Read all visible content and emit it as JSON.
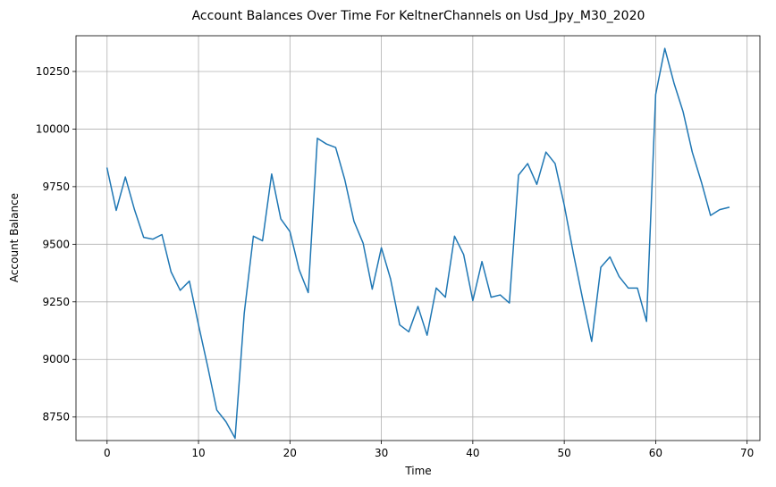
{
  "chart_data": {
    "type": "line",
    "title": "Account Balances Over Time For KeltnerChannels on Usd_Jpy_M30_2020",
    "xlabel": "Time",
    "ylabel": "Account Balance",
    "xlim": [
      -3.4,
      71.4
    ],
    "ylim": [
      8648,
      10405
    ],
    "x_ticks": [
      0,
      10,
      20,
      30,
      40,
      50,
      60,
      70
    ],
    "x_tick_labels": [
      "0",
      "10",
      "20",
      "30",
      "40",
      "50",
      "60",
      "70"
    ],
    "y_ticks": [
      8750,
      9000,
      9250,
      9500,
      9750,
      10000,
      10250
    ],
    "y_tick_labels": [
      "8750",
      "9000",
      "9250",
      "9500",
      "9750",
      "10000",
      "10250"
    ],
    "grid": true,
    "series": [
      {
        "color": "#1f77b4",
        "x": [
          0,
          1,
          2,
          3,
          4,
          5,
          6,
          7,
          8,
          9,
          10,
          11,
          12,
          13,
          14,
          15,
          16,
          17,
          18,
          19,
          20,
          21,
          22,
          23,
          24,
          25,
          26,
          27,
          28,
          29,
          30,
          31,
          32,
          33,
          34,
          35,
          36,
          37,
          38,
          39,
          40,
          41,
          42,
          43,
          44,
          45,
          46,
          47,
          48,
          49,
          50,
          51,
          52,
          53,
          54,
          55,
          56,
          57,
          58,
          59,
          60,
          61,
          62,
          63,
          64,
          65,
          66,
          67,
          68
        ],
        "values": [
          9830,
          9647,
          9792,
          9650,
          9530,
          9522,
          9542,
          9380,
          9300,
          9340,
          9150,
          8970,
          8780,
          8730,
          8658,
          9200,
          9535,
          9515,
          9805,
          9610,
          9555,
          9390,
          9290,
          9960,
          9935,
          9920,
          9780,
          9600,
          9505,
          9305,
          9485,
          9350,
          9150,
          9120,
          9230,
          9105,
          9310,
          9270,
          9535,
          9455,
          9255,
          9425,
          9270,
          9280,
          9245,
          9800,
          9850,
          9760,
          9900,
          9850,
          9670,
          9460,
          9265,
          9078,
          9400,
          9445,
          9360,
          9310,
          9310,
          9165,
          10150,
          10350,
          10200,
          10075,
          9900,
          9770,
          9625,
          9650,
          9660
        ]
      }
    ]
  }
}
